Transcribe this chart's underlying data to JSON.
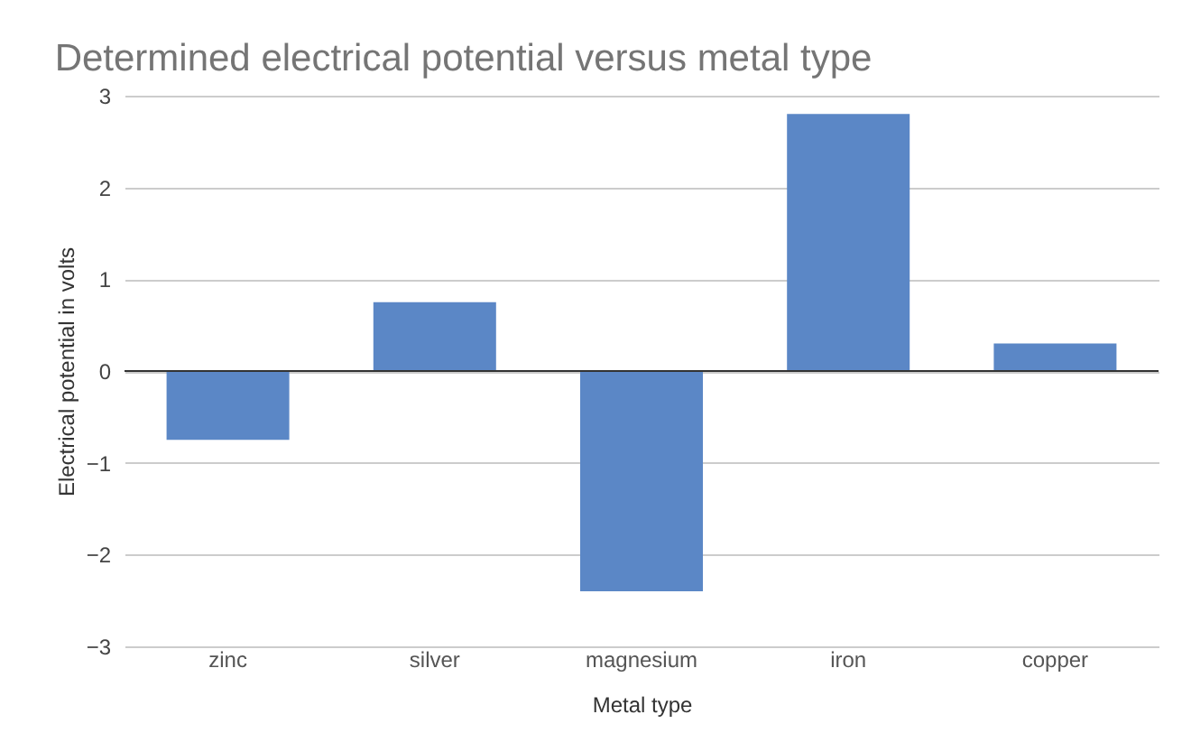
{
  "chart_data": {
    "type": "bar",
    "title": "Determined electrical potential versus metal type",
    "xlabel": "Metal type",
    "ylabel": "Electrical potential in volts",
    "categories": [
      "zinc",
      "silver",
      "magnesium",
      "iron",
      "copper"
    ],
    "values": [
      -0.75,
      0.75,
      -2.4,
      2.8,
      0.3
    ],
    "color": "#5b87c6",
    "ylim": [
      -3,
      3
    ],
    "yticks": [
      -3,
      -2,
      -1,
      0,
      1,
      2,
      3
    ],
    "grid": "y",
    "ref_lines": [
      {
        "axis": "y",
        "value": 0,
        "color": "#333333"
      }
    ]
  }
}
